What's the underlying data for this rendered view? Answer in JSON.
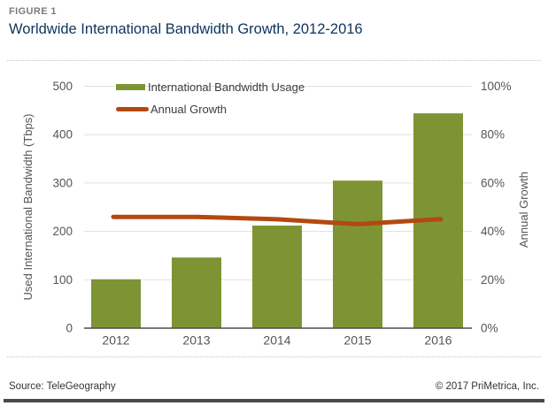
{
  "figure_label": "FIGURE 1",
  "title": "Worldwide International Bandwidth Growth, 2012-2016",
  "footer": {
    "source": "Source: TeleGeography",
    "copyright": "© 2017 PriMetrica, Inc."
  },
  "colors": {
    "bar": "#7E9434",
    "line": "#B34910",
    "title_text": "#0E345E",
    "figure_label_text": "#7B7B7B",
    "axis_text": "#555555",
    "grid": "#E0E0E0",
    "axis_line": "#4D4D4D",
    "legend_text": "#3D3D3D"
  },
  "chart_data": {
    "type": "bar",
    "categories": [
      "2012",
      "2013",
      "2014",
      "2015",
      "2016"
    ],
    "series": [
      {
        "name": "International Bandwidth Usage",
        "type": "bar",
        "axis": "left",
        "values": [
          101,
          146,
          212,
          305,
          444
        ]
      },
      {
        "name": "Annual Growth",
        "type": "line",
        "axis": "right",
        "values": [
          46,
          46,
          45,
          43,
          45
        ]
      }
    ],
    "left_axis": {
      "title": "Used International Bandwidth (Tbps)",
      "ticks": [
        0,
        100,
        200,
        300,
        400,
        500
      ],
      "range": [
        0,
        500
      ]
    },
    "right_axis": {
      "title": "Annual Growth",
      "tick_labels": [
        "0%",
        "20%",
        "40%",
        "60%",
        "80%",
        "100%"
      ],
      "range": [
        0,
        100
      ]
    },
    "legend_position": "top-left-inside",
    "grid": true
  }
}
